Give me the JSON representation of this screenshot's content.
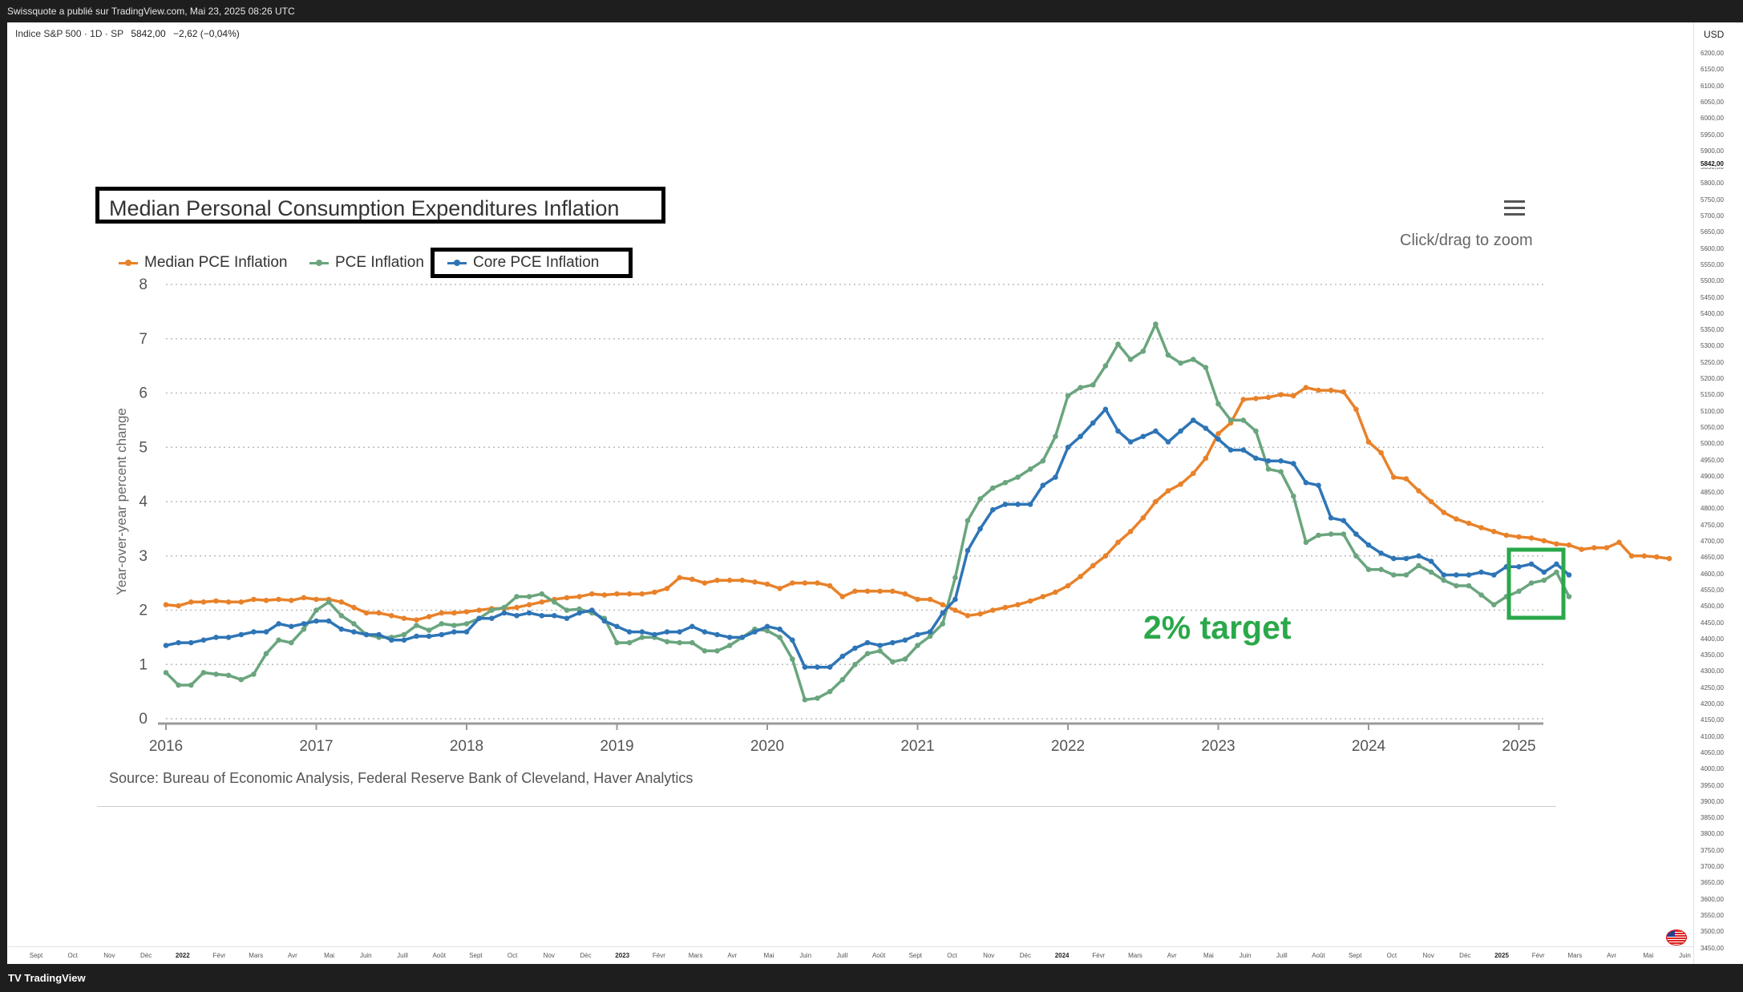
{
  "header": {
    "publisher_text": "Swissquote a publié sur TradingView.com, Mai 23, 2025 08:26 UTC"
  },
  "symbol": {
    "name": "Indice S&P 500 · 1D · SP",
    "last": "5842,00",
    "change": "−2,62 (−0,04%)"
  },
  "price_axis": {
    "currency": "USD",
    "current": "5842,00",
    "ticks": [
      "6200,00",
      "6150,00",
      "6100,00",
      "6050,00",
      "6000,00",
      "5950,00",
      "5900,00",
      "5850,00",
      "5800,00",
      "5750,00",
      "5700,00",
      "5650,00",
      "5600,00",
      "5550,00",
      "5500,00",
      "5450,00",
      "5400,00",
      "5350,00",
      "5300,00",
      "5250,00",
      "5200,00",
      "5150,00",
      "5100,00",
      "5050,00",
      "5000,00",
      "4950,00",
      "4900,00",
      "4850,00",
      "4800,00",
      "4750,00",
      "4700,00",
      "4650,00",
      "4600,00",
      "4550,00",
      "4500,00",
      "4450,00",
      "4400,00",
      "4350,00",
      "4300,00",
      "4250,00",
      "4200,00",
      "4150,00",
      "4100,00",
      "4050,00",
      "4000,00",
      "3950,00",
      "3900,00",
      "3850,00",
      "3800,00",
      "3750,00",
      "3700,00",
      "3650,00",
      "3600,00",
      "3550,00",
      "3500,00",
      "3450,00"
    ]
  },
  "time_axis": {
    "ticks": [
      {
        "label": "Sept",
        "year": false
      },
      {
        "label": "Oct",
        "year": false
      },
      {
        "label": "Nov",
        "year": false
      },
      {
        "label": "Déc",
        "year": false
      },
      {
        "label": "2022",
        "year": true
      },
      {
        "label": "Févr",
        "year": false
      },
      {
        "label": "Mars",
        "year": false
      },
      {
        "label": "Avr",
        "year": false
      },
      {
        "label": "Mai",
        "year": false
      },
      {
        "label": "Juin",
        "year": false
      },
      {
        "label": "Juill",
        "year": false
      },
      {
        "label": "Août",
        "year": false
      },
      {
        "label": "Sept",
        "year": false
      },
      {
        "label": "Oct",
        "year": false
      },
      {
        "label": "Nov",
        "year": false
      },
      {
        "label": "Déc",
        "year": false
      },
      {
        "label": "2023",
        "year": true
      },
      {
        "label": "Févr",
        "year": false
      },
      {
        "label": "Mars",
        "year": false
      },
      {
        "label": "Avr",
        "year": false
      },
      {
        "label": "Mai",
        "year": false
      },
      {
        "label": "Juin",
        "year": false
      },
      {
        "label": "Juill",
        "year": false
      },
      {
        "label": "Août",
        "year": false
      },
      {
        "label": "Sept",
        "year": false
      },
      {
        "label": "Oct",
        "year": false
      },
      {
        "label": "Nov",
        "year": false
      },
      {
        "label": "Déc",
        "year": false
      },
      {
        "label": "2024",
        "year": true
      },
      {
        "label": "Févr",
        "year": false
      },
      {
        "label": "Mars",
        "year": false
      },
      {
        "label": "Avr",
        "year": false
      },
      {
        "label": "Mai",
        "year": false
      },
      {
        "label": "Juin",
        "year": false
      },
      {
        "label": "Juill",
        "year": false
      },
      {
        "label": "Août",
        "year": false
      },
      {
        "label": "Sept",
        "year": false
      },
      {
        "label": "Oct",
        "year": false
      },
      {
        "label": "Nov",
        "year": false
      },
      {
        "label": "Déc",
        "year": false
      },
      {
        "label": "2025",
        "year": true
      },
      {
        "label": "Févr",
        "year": false
      },
      {
        "label": "Mars",
        "year": false
      },
      {
        "label": "Avr",
        "year": false
      },
      {
        "label": "Mai",
        "year": false
      },
      {
        "label": "Juin",
        "year": false
      }
    ]
  },
  "footer": {
    "brand": "TradingView"
  },
  "embedded_chart": {
    "menu_icon": "hamburger-menu-icon",
    "zoom_hint": "Click/drag to zoom",
    "source": "Source: Bureau of Economic Analysis, Federal Reserve Bank of Cleveland, Haver Analytics",
    "annotation": "2% target",
    "annotation_color": "#2aa84a"
  },
  "chart_data": {
    "type": "line",
    "title": "Median Personal Consumption Expenditures Inflation",
    "ylabel": "Year-over-year percent change",
    "xlabel": "",
    "ylim": [
      0,
      8
    ],
    "y_ticks": [
      "0",
      "1",
      "2",
      "3",
      "4",
      "5",
      "6",
      "7",
      "8"
    ],
    "x_ticks": [
      "2016",
      "2017",
      "2018",
      "2019",
      "2020",
      "2021",
      "2022",
      "2023",
      "2024",
      "2025"
    ],
    "xlim": [
      "2016-01",
      "2025-03"
    ],
    "grid": true,
    "legend_position": "top-left",
    "series": [
      {
        "name": "Median PCE Inflation",
        "color": "#e8822a",
        "values": [
          2.1,
          2.08,
          2.15,
          2.15,
          2.17,
          2.15,
          2.15,
          2.2,
          2.18,
          2.2,
          2.18,
          2.23,
          2.2,
          2.2,
          2.15,
          2.05,
          1.95,
          1.95,
          1.9,
          1.85,
          1.82,
          1.88,
          1.95,
          1.95,
          1.97,
          2.0,
          2.03,
          2.03,
          2.05,
          2.1,
          2.15,
          2.2,
          2.23,
          2.25,
          2.3,
          2.28,
          2.3,
          2.3,
          2.3,
          2.33,
          2.4,
          2.6,
          2.57,
          2.5,
          2.55,
          2.55,
          2.55,
          2.52,
          2.48,
          2.4,
          2.5,
          2.5,
          2.5,
          2.45,
          2.25,
          2.35,
          2.35,
          2.35,
          2.35,
          2.3,
          2.2,
          2.2,
          2.1,
          2.0,
          1.9,
          1.93,
          2.0,
          2.05,
          2.1,
          2.17,
          2.25,
          2.33,
          2.45,
          2.62,
          2.82,
          3.0,
          3.25,
          3.45,
          3.7,
          4.0,
          4.2,
          4.32,
          4.52,
          4.8,
          5.25,
          5.45,
          5.88,
          5.9,
          5.92,
          5.97,
          5.95,
          6.1,
          6.05,
          6.05,
          6.02,
          5.7,
          5.1,
          4.9,
          4.45,
          4.42,
          4.2,
          4.0,
          3.8,
          3.68,
          3.6,
          3.52,
          3.45,
          3.38,
          3.35,
          3.33,
          3.28,
          3.22,
          3.2,
          3.12,
          3.15,
          3.15,
          3.25,
          3.0,
          3.0,
          2.98,
          2.95
        ]
      },
      {
        "name": "PCE Inflation",
        "color": "#6aa57e",
        "values": [
          0.85,
          0.62,
          0.62,
          0.85,
          0.82,
          0.8,
          0.72,
          0.82,
          1.2,
          1.45,
          1.4,
          1.65,
          2.0,
          2.15,
          1.9,
          1.75,
          1.55,
          1.5,
          1.5,
          1.55,
          1.72,
          1.63,
          1.75,
          1.72,
          1.75,
          1.85,
          2.0,
          2.05,
          2.25,
          2.25,
          2.3,
          2.15,
          2.0,
          2.02,
          1.95,
          1.85,
          1.4,
          1.4,
          1.5,
          1.5,
          1.42,
          1.4,
          1.4,
          1.25,
          1.25,
          1.35,
          1.5,
          1.65,
          1.62,
          1.5,
          1.1,
          0.35,
          0.38,
          0.5,
          0.72,
          1.0,
          1.2,
          1.25,
          1.05,
          1.1,
          1.35,
          1.52,
          1.75,
          2.6,
          3.65,
          4.05,
          4.25,
          4.35,
          4.45,
          4.6,
          4.75,
          5.2,
          5.95,
          6.1,
          6.15,
          6.5,
          6.9,
          6.62,
          6.77,
          7.27,
          6.7,
          6.55,
          6.62,
          6.47,
          5.8,
          5.5,
          5.5,
          5.3,
          4.6,
          4.55,
          4.1,
          3.25,
          3.38,
          3.4,
          3.4,
          3.0,
          2.75,
          2.75,
          2.65,
          2.65,
          2.82,
          2.7,
          2.55,
          2.45,
          2.45,
          2.28,
          2.1,
          2.25,
          2.35,
          2.5,
          2.55,
          2.7,
          2.25
        ]
      },
      {
        "name": "Core PCE Inflation",
        "color": "#2e75b6",
        "values": [
          1.35,
          1.4,
          1.4,
          1.45,
          1.5,
          1.5,
          1.55,
          1.6,
          1.6,
          1.75,
          1.7,
          1.75,
          1.8,
          1.8,
          1.65,
          1.6,
          1.55,
          1.55,
          1.45,
          1.45,
          1.52,
          1.52,
          1.55,
          1.6,
          1.6,
          1.85,
          1.85,
          1.95,
          1.9,
          1.95,
          1.9,
          1.9,
          1.85,
          1.95,
          2.0,
          1.8,
          1.7,
          1.6,
          1.6,
          1.55,
          1.6,
          1.6,
          1.7,
          1.6,
          1.55,
          1.5,
          1.5,
          1.6,
          1.7,
          1.65,
          1.45,
          0.95,
          0.95,
          0.95,
          1.15,
          1.3,
          1.4,
          1.35,
          1.4,
          1.45,
          1.55,
          1.6,
          1.95,
          2.2,
          3.1,
          3.5,
          3.85,
          3.95,
          3.95,
          3.95,
          4.3,
          4.45,
          5.0,
          5.2,
          5.45,
          5.7,
          5.3,
          5.1,
          5.2,
          5.3,
          5.1,
          5.3,
          5.5,
          5.35,
          5.15,
          4.95,
          4.95,
          4.8,
          4.75,
          4.75,
          4.7,
          4.35,
          4.3,
          3.7,
          3.65,
          3.4,
          3.2,
          3.05,
          2.95,
          2.95,
          3.0,
          2.9,
          2.65,
          2.65,
          2.65,
          2.7,
          2.65,
          2.8,
          2.8,
          2.85,
          2.7,
          2.85,
          2.65
        ]
      }
    ]
  }
}
